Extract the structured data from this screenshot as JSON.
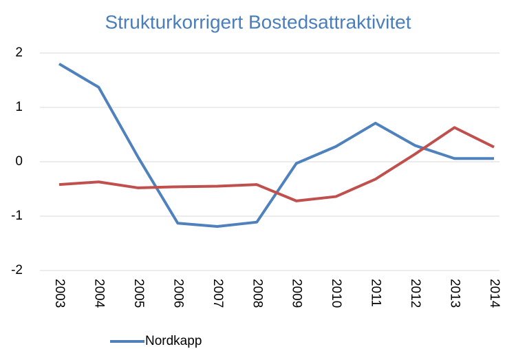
{
  "chart_data": {
    "type": "line",
    "title": "Strukturkorrigert Bostedsattraktivitet",
    "categories": [
      "2003",
      "2004",
      "2005",
      "2006",
      "2007",
      "2008",
      "2009",
      "2010",
      "2011",
      "2012",
      "2013",
      "2014"
    ],
    "series": [
      {
        "name": "Nordkapp",
        "color": "#4f81bd",
        "values": [
          1.8,
          1.37,
          0.08,
          -1.13,
          -1.19,
          -1.11,
          -0.03,
          0.28,
          0.71,
          0.3,
          0.06,
          0.06
        ]
      },
      {
        "color": "#c0504d",
        "values": [
          -0.42,
          -0.37,
          -0.48,
          -0.46,
          -0.45,
          -0.42,
          -0.72,
          -0.64,
          -0.32,
          0.14,
          0.63,
          0.27
        ]
      }
    ],
    "ylim": [
      -2,
      2
    ],
    "yticks": [
      -2,
      -1,
      0,
      1,
      2
    ],
    "grid": true,
    "legend": "bottom"
  }
}
